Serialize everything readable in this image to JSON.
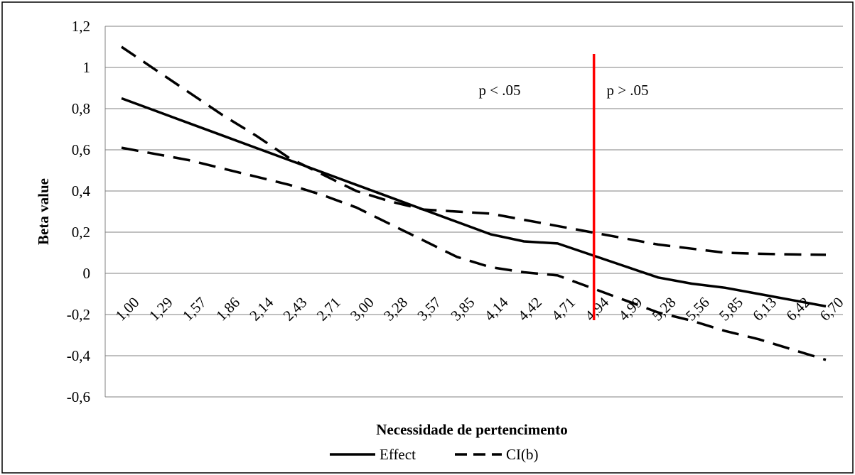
{
  "chart_data": {
    "type": "line",
    "title": "",
    "xlabel": "Necessidade de pertencimento",
    "ylabel": "Beta value",
    "ylim": [
      -0.6,
      1.2
    ],
    "y_ticks": [
      "1,2",
      "1",
      "0,8",
      "0,6",
      "0,4",
      "0,2",
      "0",
      "-0,2",
      "-0,4",
      "-0,6"
    ],
    "y_tick_values": [
      1.2,
      1.0,
      0.8,
      0.6,
      0.4,
      0.2,
      0.0,
      -0.2,
      -0.4,
      -0.6
    ],
    "categories": [
      "1,00",
      "1,29",
      "1,57",
      "1,86",
      "2,14",
      "2,43",
      "2,71",
      "3,00",
      "3,28",
      "3,57",
      "3,85",
      "4,14",
      "4,42",
      "4,71",
      "4,94",
      "4,99",
      "5,28",
      "5,56",
      "5,85",
      "6,13",
      "6,42",
      "6,70"
    ],
    "series": [
      {
        "name": "Effect",
        "style": "solid",
        "color": "#000000",
        "values": [
          0.85,
          0.79,
          0.73,
          0.67,
          0.61,
          0.55,
          0.49,
          0.43,
          0.37,
          0.31,
          0.25,
          0.19,
          0.155,
          0.145,
          0.09,
          0.035,
          -0.02,
          -0.05,
          -0.07,
          -0.1,
          -0.13,
          -0.16
        ]
      },
      {
        "name": "CI(b)",
        "style": "dashed",
        "color": "#000000",
        "values": [
          1.1,
          0.99,
          0.88,
          0.77,
          0.67,
          0.56,
          0.48,
          0.4,
          0.35,
          0.31,
          0.3,
          0.29,
          0.26,
          0.23,
          0.2,
          0.17,
          0.14,
          0.12,
          0.1,
          0.095,
          0.092,
          0.09
        ]
      },
      {
        "name": "CI(b) lower",
        "style": "dashed",
        "color": "#000000",
        "values": [
          0.61,
          0.58,
          0.55,
          0.51,
          0.47,
          0.43,
          0.38,
          0.32,
          0.24,
          0.16,
          0.08,
          0.03,
          0.005,
          -0.01,
          -0.07,
          -0.13,
          -0.19,
          -0.23,
          -0.28,
          -0.32,
          -0.37,
          -0.42
        ]
      }
    ],
    "threshold": {
      "x_category": "4,94",
      "color": "#ff0000",
      "left_label": "p < .05",
      "right_label": "p > .05"
    },
    "legend": {
      "placement": "bottom-center",
      "entries": [
        {
          "label": "Effect",
          "style": "solid"
        },
        {
          "label": "CI(b)",
          "style": "dashed"
        }
      ]
    },
    "grid": true
  }
}
